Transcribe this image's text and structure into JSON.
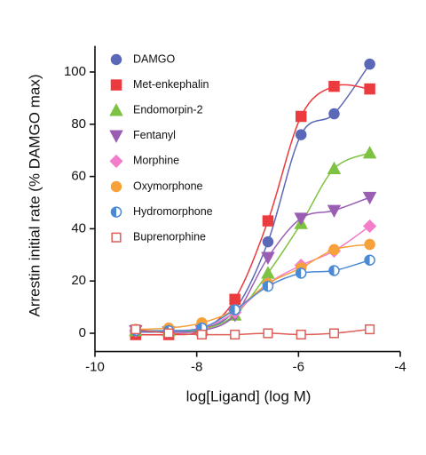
{
  "chart_data": {
    "type": "scatter",
    "xlabel": "log[Ligand] (log M)",
    "ylabel": "Arrestin initial rate (% DAMGO max)",
    "x": [
      -9.2,
      -8.55,
      -7.9,
      -7.25,
      -6.6,
      -5.95,
      -5.3,
      -4.6
    ],
    "xlim": [
      -10,
      -4
    ],
    "xticks": [
      -10,
      -8,
      -6,
      -4
    ],
    "ylim": [
      -7,
      110
    ],
    "yticks": [
      0,
      20,
      40,
      60,
      80,
      100
    ],
    "series": [
      {
        "name": "DAMGO",
        "color": "#5b68b8",
        "marker": "circle",
        "values": [
          0.5,
          0.5,
          1.5,
          9,
          35,
          76,
          84,
          103
        ]
      },
      {
        "name": "Met-enkephalin",
        "color": "#ec3b3f",
        "marker": "square",
        "values": [
          -0.5,
          -0.5,
          1,
          13,
          43,
          83,
          94.5,
          93.5
        ]
      },
      {
        "name": "Endomorpin-2",
        "color": "#7dc242",
        "marker": "triangle-up",
        "values": [
          1,
          1,
          1.5,
          7,
          23,
          42,
          63,
          69
        ]
      },
      {
        "name": "Fentanyl",
        "color": "#9a5db4",
        "marker": "triangle-down",
        "values": [
          1,
          0.5,
          1,
          7,
          29,
          44,
          47,
          52
        ]
      },
      {
        "name": "Morphine",
        "color": "#f27ec9",
        "marker": "diamond",
        "values": [
          1,
          1,
          2,
          8,
          19,
          26,
          31.5,
          41
        ]
      },
      {
        "name": "Oxymorphone",
        "color": "#f7a13a",
        "marker": "circle",
        "values": [
          1.5,
          2,
          4,
          9,
          19,
          25,
          32,
          34
        ]
      },
      {
        "name": "Hydromorphone",
        "color": "#4a8ad4",
        "marker": "half-circle",
        "values": [
          1,
          1,
          2,
          9,
          18,
          23,
          24,
          28
        ]
      },
      {
        "name": "Buprenorphine",
        "color": "#de5e58",
        "marker": "open-square",
        "values": [
          1.5,
          0,
          -0.5,
          -0.5,
          0,
          -0.5,
          0,
          1.5
        ]
      }
    ]
  }
}
